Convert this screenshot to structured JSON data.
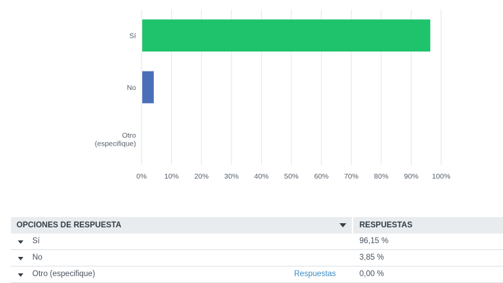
{
  "chart_data": {
    "type": "bar",
    "orientation": "horizontal",
    "categories": [
      "Sí",
      "No",
      "Otro (especifique)"
    ],
    "category_label_lines": [
      [
        "Sí"
      ],
      [
        "No"
      ],
      [
        "Otro",
        "(especifique)"
      ]
    ],
    "values": [
      96.15,
      3.85,
      0
    ],
    "bar_colors": [
      "#1fc36c",
      "#4a6fb8",
      "#1fc36c"
    ],
    "xlim": [
      0,
      100
    ],
    "x_ticks": [
      0,
      10,
      20,
      30,
      40,
      50,
      60,
      70,
      80,
      90,
      100
    ],
    "x_tick_labels": [
      "0%",
      "10%",
      "20%",
      "30%",
      "40%",
      "50%",
      "60%",
      "70%",
      "80%",
      "90%",
      "100%"
    ],
    "grid": true,
    "grid_color": "#e2e5e8",
    "title": "",
    "xlabel": "",
    "ylabel": ""
  },
  "table": {
    "header": {
      "options_label": "OPCIONES DE RESPUESTA",
      "responses_label": "RESPUESTAS"
    },
    "rows": [
      {
        "label": "Sí",
        "value": "96,15 %",
        "link": ""
      },
      {
        "label": "No",
        "value": "3,85 %",
        "link": ""
      },
      {
        "label": "Otro (especifique)",
        "value": "0,00 %",
        "link": "Respuestas"
      }
    ]
  }
}
